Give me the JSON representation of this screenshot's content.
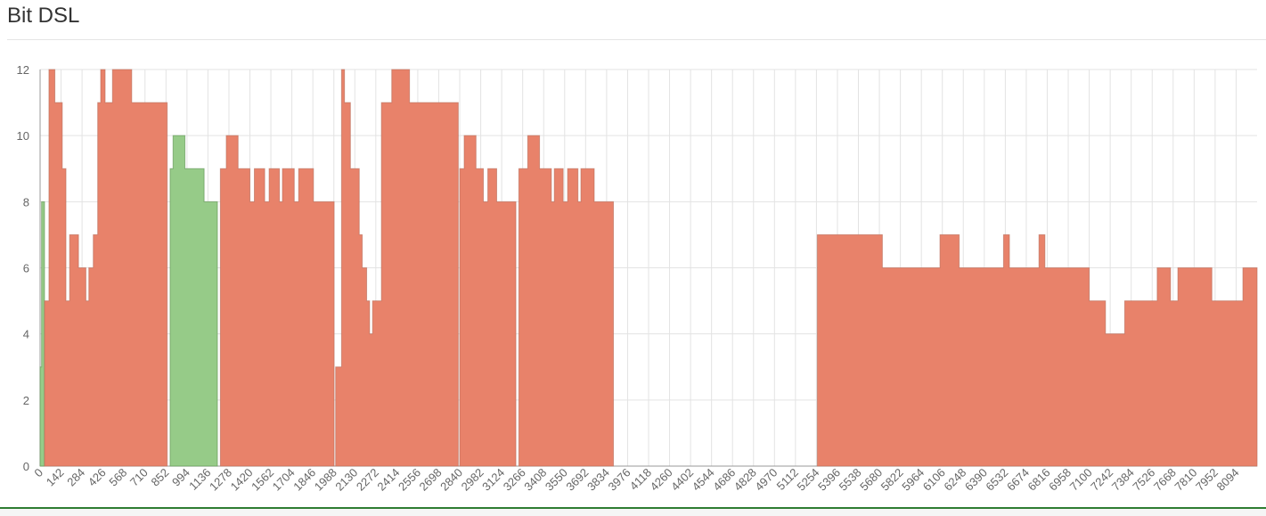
{
  "panel": {
    "title": "Bit DSL"
  },
  "colors": {
    "orange": "#e8826a",
    "green": "#96cb88",
    "grid": "#e3e3e3",
    "axis": "#999999"
  },
  "chart_data": {
    "type": "area",
    "title": "Bit DSL",
    "xlabel": "",
    "ylabel": "",
    "ylim": [
      0,
      12
    ],
    "xlim": [
      0,
      8236
    ],
    "grid": true,
    "y_ticks": [
      0,
      2,
      4,
      6,
      8,
      10,
      12
    ],
    "x_ticks": [
      0,
      142,
      284,
      426,
      568,
      710,
      852,
      994,
      1136,
      1278,
      1420,
      1562,
      1704,
      1846,
      1988,
      2130,
      2272,
      2414,
      2556,
      2698,
      2840,
      2982,
      3124,
      3266,
      3408,
      3550,
      3692,
      3834,
      3976,
      4118,
      4260,
      4402,
      4544,
      4686,
      4828,
      4970,
      5112,
      5254,
      5396,
      5538,
      5680,
      5822,
      5964,
      6106,
      6248,
      6390,
      6532,
      6674,
      6816,
      6958,
      7100,
      7242,
      7384,
      7526,
      7668,
      7810,
      7952,
      8094
    ],
    "segments": [
      {
        "color": "green",
        "points": [
          [
            0,
            3
          ],
          [
            10,
            8
          ],
          [
            30,
            8
          ]
        ]
      },
      {
        "color": "orange",
        "points": [
          [
            30,
            5
          ],
          [
            60,
            12
          ],
          [
            80,
            12
          ],
          [
            100,
            11
          ],
          [
            130,
            11
          ],
          [
            150,
            9
          ],
          [
            175,
            5
          ],
          [
            200,
            7
          ],
          [
            240,
            7
          ],
          [
            260,
            6
          ],
          [
            290,
            6
          ],
          [
            310,
            5
          ],
          [
            330,
            6
          ],
          [
            360,
            7
          ],
          [
            390,
            11
          ],
          [
            410,
            12
          ],
          [
            440,
            11
          ],
          [
            470,
            11
          ],
          [
            490,
            12
          ],
          [
            600,
            12
          ],
          [
            620,
            11
          ],
          [
            860,
            11
          ]
        ]
      },
      {
        "color": "green",
        "points": [
          [
            880,
            9
          ],
          [
            900,
            10
          ],
          [
            960,
            10
          ],
          [
            980,
            9
          ],
          [
            1010,
            9
          ],
          [
            1030,
            9
          ],
          [
            1100,
            9
          ],
          [
            1110,
            8
          ],
          [
            1180,
            8
          ],
          [
            1200,
            7
          ]
        ]
      },
      {
        "color": "orange",
        "points": [
          [
            1220,
            9
          ],
          [
            1260,
            10
          ],
          [
            1320,
            10
          ],
          [
            1340,
            9
          ],
          [
            1400,
            9
          ],
          [
            1420,
            8
          ],
          [
            1450,
            9
          ],
          [
            1500,
            9
          ],
          [
            1520,
            8
          ],
          [
            1550,
            9
          ],
          [
            1600,
            9
          ],
          [
            1620,
            8
          ],
          [
            1640,
            9
          ],
          [
            1700,
            9
          ],
          [
            1720,
            8
          ],
          [
            1750,
            9
          ],
          [
            1820,
            9
          ],
          [
            1850,
            8
          ],
          [
            1990,
            8
          ]
        ]
      },
      {
        "color": "orange",
        "points": [
          [
            2000,
            3
          ],
          [
            2040,
            12
          ],
          [
            2060,
            11
          ],
          [
            2100,
            9
          ],
          [
            2140,
            9
          ],
          [
            2160,
            7
          ],
          [
            2180,
            6
          ],
          [
            2210,
            5
          ],
          [
            2230,
            4
          ],
          [
            2250,
            5
          ],
          [
            2290,
            5
          ],
          [
            2310,
            11
          ],
          [
            2350,
            11
          ],
          [
            2380,
            12
          ],
          [
            2450,
            12
          ],
          [
            2500,
            11
          ],
          [
            2830,
            11
          ]
        ]
      },
      {
        "color": "orange",
        "points": [
          [
            2840,
            9
          ],
          [
            2870,
            10
          ],
          [
            2930,
            10
          ],
          [
            2950,
            9
          ],
          [
            2980,
            9
          ],
          [
            3000,
            8
          ],
          [
            3030,
            9
          ],
          [
            3070,
            9
          ],
          [
            3090,
            8
          ],
          [
            3200,
            8
          ],
          [
            3220,
            7
          ]
        ]
      },
      {
        "color": "orange",
        "points": [
          [
            3240,
            9
          ],
          [
            3300,
            10
          ],
          [
            3360,
            10
          ],
          [
            3380,
            9
          ],
          [
            3440,
            9
          ],
          [
            3460,
            8
          ],
          [
            3480,
            9
          ],
          [
            3520,
            9
          ],
          [
            3540,
            8
          ],
          [
            3570,
            9
          ],
          [
            3620,
            9
          ],
          [
            3640,
            8
          ],
          [
            3660,
            9
          ],
          [
            3720,
            9
          ],
          [
            3750,
            8
          ],
          [
            3880,
            8
          ]
        ]
      },
      {
        "color": "orange",
        "points": [
          [
            5260,
            7
          ],
          [
            5400,
            7
          ],
          [
            5670,
            7
          ],
          [
            5700,
            6
          ],
          [
            6060,
            6
          ],
          [
            6090,
            7
          ],
          [
            6200,
            7
          ],
          [
            6220,
            6
          ],
          [
            6500,
            6
          ],
          [
            6520,
            7
          ],
          [
            6560,
            6
          ],
          [
            6740,
            6
          ],
          [
            6760,
            7
          ],
          [
            6800,
            6
          ],
          [
            7080,
            6
          ],
          [
            7100,
            5
          ],
          [
            7190,
            5
          ],
          [
            7210,
            4
          ],
          [
            7310,
            4
          ],
          [
            7340,
            5
          ],
          [
            7540,
            5
          ],
          [
            7560,
            6
          ],
          [
            7620,
            6
          ],
          [
            7650,
            5
          ],
          [
            7700,
            6
          ],
          [
            7900,
            6
          ],
          [
            7930,
            5
          ],
          [
            8100,
            5
          ],
          [
            8140,
            6
          ],
          [
            8236,
            6
          ]
        ]
      }
    ]
  }
}
